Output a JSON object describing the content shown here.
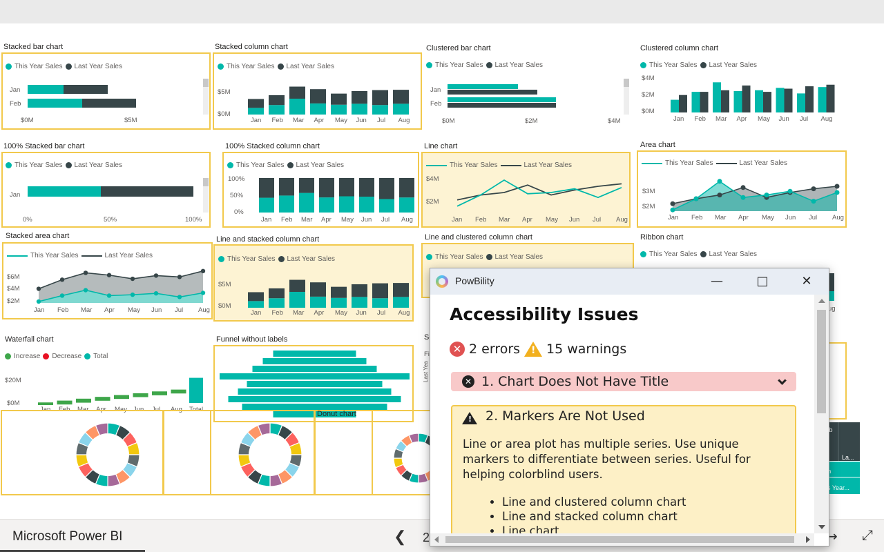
{
  "app": {
    "name": "Microsoft Power BI",
    "page_number": "2"
  },
  "legend": {
    "this_year": "This Year Sales",
    "last_year": "Last Year Sales",
    "increase": "Increase",
    "decrease": "Decrease",
    "total": "Total"
  },
  "months": [
    "Jan",
    "Feb",
    "Mar",
    "Apr",
    "May",
    "Jun",
    "Jul",
    "Aug"
  ],
  "colors": {
    "teal": "#01b8aa",
    "dark": "#374649",
    "yellow_border": "#f2c94c",
    "highlight": "#fdf3d3",
    "error": "#e05252",
    "warning": "#f2b01e"
  },
  "visuals": {
    "stacked_bar": {
      "title": "Stacked bar chart",
      "cats": [
        "Jan",
        "Feb"
      ],
      "ticks": [
        "$0M",
        "$5M"
      ]
    },
    "stacked_column": {
      "title": "Stacked column chart",
      "ticks": [
        "$5M",
        "$0M"
      ]
    },
    "clustered_bar": {
      "title": "Clustered bar chart",
      "cats": [
        "Jan",
        "Feb"
      ],
      "ticks": [
        "$0M",
        "$2M",
        "$4M"
      ]
    },
    "clustered_column": {
      "title": "Clustered column chart",
      "ticks": [
        "$4M",
        "$2M",
        "$0M"
      ]
    },
    "pct_stacked_bar": {
      "title": "100% Stacked bar chart",
      "cats": [
        "Jan"
      ],
      "ticks": [
        "0%",
        "50%",
        "100%"
      ]
    },
    "pct_stacked_column": {
      "title": "100% Stacked column chart",
      "ticks": [
        "100%",
        "50%",
        "0%"
      ]
    },
    "line": {
      "title": "Line chart",
      "ticks": [
        "$4M",
        "$2M"
      ]
    },
    "area": {
      "title": "Area chart",
      "ticks": [
        "$3M",
        "$2M"
      ]
    },
    "stacked_area": {
      "title": "Stacked area chart",
      "ticks": [
        "$6M",
        "$4M",
        "$2M"
      ]
    },
    "line_stacked_column": {
      "title": "Line and stacked column chart",
      "ticks": [
        "$5M",
        "$0M"
      ]
    },
    "line_clustered_column": {
      "title": "Line and clustered column chart"
    },
    "ribbon": {
      "title": "Ribbon chart",
      "partial_labels": [
        "ug"
      ]
    },
    "waterfall": {
      "title": "Waterfall chart",
      "ticks": [
        "$20M",
        "$0M"
      ],
      "cats": [
        "Jan",
        "Feb",
        "Mar",
        "Apr",
        "May",
        "Jun",
        "Jul",
        "Aug",
        "Total"
      ]
    },
    "funnel": {
      "title": "Funnel without labels"
    },
    "donut": {
      "title": "Donut chart"
    },
    "hidden_visual": {
      "title_fragment": "Sc",
      "label_fragment": "Fi",
      "axis_fragment": "Last Yea"
    },
    "matrix_fragment": {
      "cells": [
        "eb",
        "La...",
        "n",
        "is Year..."
      ]
    }
  },
  "dialog": {
    "title": "PowBility",
    "heading": "Accessibility Issues",
    "errors": "2 errors",
    "warnings": "15 warnings",
    "issue1": "1. Chart Does Not Have Title",
    "issue2": "2. Markers Are Not Used",
    "issue2_desc": "Line or area plot has multiple series. Use unique markers to differentiate between series. Useful for helping colorblind users.",
    "issue2_items": [
      "Line and clustered column chart",
      "Line and stacked column chart",
      "Line chart"
    ]
  },
  "chart_data": [
    {
      "type": "bar",
      "title": "Stacked bar chart",
      "categories": [
        "Jan",
        "Feb"
      ],
      "series": [
        {
          "name": "This Year Sales",
          "values": [
            2.3,
            3.5
          ]
        },
        {
          "name": "Last Year Sales",
          "values": [
            2.9,
            3.5
          ]
        }
      ]
    },
    {
      "type": "bar",
      "title": "Stacked column chart",
      "categories": [
        "Jan",
        "Feb",
        "Mar",
        "Apr",
        "May",
        "Jun",
        "Jul",
        "Aug"
      ],
      "series": [
        {
          "name": "This Year Sales",
          "values": [
            2.1,
            3.0,
            5.0,
            3.5,
            3.1,
            3.4,
            3.0,
            3.4
          ]
        },
        {
          "name": "Last Year Sales",
          "values": [
            2.8,
            3.1,
            3.8,
            4.5,
            3.5,
            4.0,
            4.7,
            4.4
          ]
        }
      ]
    },
    {
      "type": "bar",
      "title": "Clustered bar chart",
      "categories": [
        "Jan",
        "Feb"
      ],
      "series": [
        {
          "name": "This Year Sales",
          "values": [
            1.7,
            2.6
          ]
        },
        {
          "name": "Last Year Sales",
          "values": [
            2.2,
            2.6
          ]
        }
      ]
    },
    {
      "type": "bar",
      "title": "Clustered column chart",
      "categories": [
        "Jan",
        "Feb",
        "Mar",
        "Apr",
        "May",
        "Jun",
        "Jul",
        "Aug"
      ],
      "series": [
        {
          "name": "This Year Sales",
          "values": [
            1.6,
            2.6,
            3.8,
            2.7,
            2.8,
            3.1,
            2.4,
            3.2
          ]
        },
        {
          "name": "Last Year Sales",
          "values": [
            2.2,
            2.6,
            2.8,
            3.4,
            2.6,
            3.0,
            3.3,
            3.5
          ]
        }
      ]
    },
    {
      "type": "line",
      "title": "Line chart",
      "categories": [
        "Jan",
        "Feb",
        "Mar",
        "Apr",
        "May",
        "Jun",
        "Jul",
        "Aug"
      ],
      "series": [
        {
          "name": "This Year Sales",
          "values": [
            1.7,
            2.6,
            3.8,
            2.7,
            2.8,
            3.1,
            2.4,
            3.2
          ]
        },
        {
          "name": "Last Year Sales",
          "values": [
            2.2,
            2.6,
            2.8,
            3.4,
            2.6,
            3.0,
            3.3,
            3.5
          ]
        }
      ]
    }
  ]
}
